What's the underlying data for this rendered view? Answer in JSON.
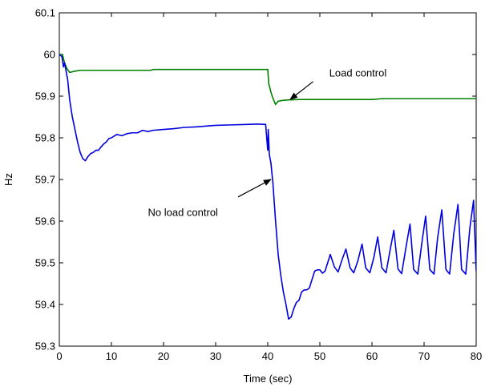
{
  "chart_data": {
    "type": "line",
    "title": "",
    "xlabel": "Time (sec)",
    "ylabel": "Hz",
    "xlim": [
      0,
      80
    ],
    "ylim": [
      59.3,
      60.1
    ],
    "x_ticks": [
      "0",
      "10",
      "20",
      "30",
      "40",
      "50",
      "60",
      "70",
      "80"
    ],
    "y_ticks": [
      "59.3",
      "59.4",
      "59.5",
      "59.6",
      "59.7",
      "59.8",
      "59.9",
      "60",
      "60.1"
    ],
    "grid": false,
    "legend": "none",
    "series": [
      {
        "color": "#008000",
        "x": [
          0,
          0.6,
          1.0,
          1.5,
          2.0,
          3.0,
          4.0,
          6.0,
          10,
          17.5,
          18,
          25,
          30,
          35,
          39.6,
          40,
          40.2,
          40.6,
          41.0,
          41.5,
          42,
          43,
          44,
          46,
          50,
          60,
          62,
          70,
          80
        ],
        "y": [
          60.0,
          60.0,
          59.98,
          59.965,
          59.957,
          59.96,
          59.962,
          59.962,
          59.962,
          59.962,
          59.964,
          59.964,
          59.964,
          59.964,
          59.964,
          59.964,
          59.93,
          59.91,
          59.895,
          59.88,
          59.888,
          59.89,
          59.891,
          59.892,
          59.892,
          59.892,
          59.894,
          59.894,
          59.894
        ]
      },
      {
        "color": "#0000dd",
        "x": [
          0,
          0.5,
          0.8,
          1.0,
          1.3,
          1.6,
          2.0,
          2.5,
          3.0,
          3.5,
          4.0,
          4.5,
          5.0,
          5.5,
          6.0,
          6.5,
          7.0,
          7.5,
          8.0,
          8.5,
          9.0,
          9.5,
          10,
          11,
          12,
          13,
          14,
          15,
          16,
          17,
          18,
          20,
          22,
          24,
          26,
          28,
          30,
          33,
          36,
          38,
          39.6,
          39.8,
          40.0,
          40.1,
          40.3,
          40.6,
          41.0,
          41.5,
          42.0,
          42.5,
          43.0,
          43.5,
          44.0,
          44.5,
          45.0,
          45.5,
          46.0,
          46.5,
          47.0,
          47.5,
          48.0,
          48.5,
          49.0,
          49.5,
          50.0,
          50.5,
          51.0,
          51.5,
          52.0,
          52.8,
          53.5,
          54.2,
          55.0,
          55.8,
          56.5,
          57.3,
          58.1,
          58.8,
          59.6,
          60.4,
          61.1,
          61.9,
          62.7,
          63.4,
          64.2,
          65.0,
          65.7,
          66.5,
          67.3,
          68.0,
          68.8,
          69.6,
          70.3,
          71.1,
          71.9,
          72.6,
          73.4,
          74.2,
          74.9,
          75.7,
          76.5,
          77.2,
          78.0,
          78.8,
          79.5,
          80.0
        ],
        "y": [
          60.0,
          59.995,
          59.97,
          59.98,
          59.96,
          59.94,
          59.89,
          59.85,
          59.82,
          59.79,
          59.765,
          59.75,
          59.745,
          59.755,
          59.762,
          59.765,
          59.77,
          59.77,
          59.778,
          59.785,
          59.79,
          59.798,
          59.8,
          59.808,
          59.805,
          59.81,
          59.812,
          59.812,
          59.818,
          59.815,
          59.818,
          59.82,
          59.822,
          59.825,
          59.826,
          59.828,
          59.83,
          59.831,
          59.832,
          59.833,
          59.832,
          59.8,
          59.77,
          59.82,
          59.76,
          59.74,
          59.69,
          59.6,
          59.52,
          59.47,
          59.43,
          59.4,
          59.365,
          59.37,
          59.39,
          59.405,
          59.41,
          59.43,
          59.435,
          59.435,
          59.44,
          59.46,
          59.48,
          59.483,
          59.483,
          59.475,
          59.48,
          59.5,
          59.52,
          59.49,
          59.478,
          59.505,
          59.533,
          59.488,
          59.476,
          59.505,
          59.545,
          59.488,
          59.476,
          59.515,
          59.562,
          59.488,
          59.476,
          59.525,
          59.578,
          59.485,
          59.474,
          59.535,
          59.593,
          59.484,
          59.473,
          59.55,
          59.612,
          59.484,
          59.473,
          59.56,
          59.627,
          59.484,
          59.473,
          59.57,
          59.64,
          59.484,
          59.473,
          59.585,
          59.65,
          59.48
        ]
      }
    ],
    "annotations": [
      {
        "text": "Load control",
        "x": 51.8,
        "y": 59.955,
        "arrow_from": [
          48.7,
          59.935
        ],
        "arrow_to": [
          44.3,
          59.892
        ]
      },
      {
        "text": "No load control",
        "x": 17,
        "y": 59.62,
        "arrow_from": [
          34.3,
          59.658
        ],
        "arrow_to": [
          40.6,
          59.7
        ]
      }
    ]
  }
}
